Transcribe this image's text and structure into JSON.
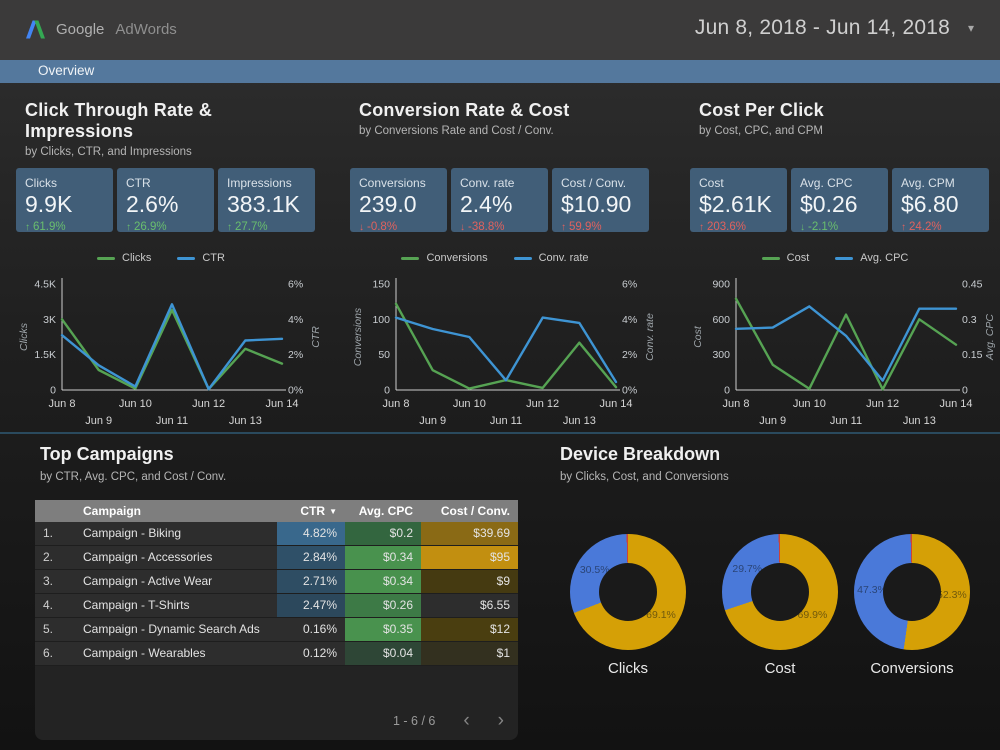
{
  "header": {
    "brand_google": "Google",
    "brand_product": "AdWords",
    "date_range": "Jun 8, 2018 - Jun 14, 2018",
    "date_caret": "▾"
  },
  "nav": {
    "overview_tab": "Overview"
  },
  "colors": {
    "accent_green": "#56A353",
    "accent_blue": "#3E94D3",
    "delta_good": "#69BE6E",
    "delta_bad": "#E0625E",
    "donut_gold": "#D5A006",
    "donut_blue": "#4A79D9",
    "donut_red": "#CC4437",
    "card_bg": "#415E78",
    "overview_bar": "#54789D"
  },
  "sections": [
    {
      "title": "Click Through Rate & Impressions",
      "subtitle": "by Clicks, CTR, and Impressions",
      "scorecards": [
        {
          "label": "Clicks",
          "value": "9.9K",
          "arrow": "↑",
          "delta": "61.9%",
          "sentiment": "good"
        },
        {
          "label": "CTR",
          "value": "2.6%",
          "arrow": "↑",
          "delta": "26.9%",
          "sentiment": "good"
        },
        {
          "label": "Impressions",
          "value": "383.1K",
          "arrow": "↑",
          "delta": "27.7%",
          "sentiment": "good"
        }
      ]
    },
    {
      "title": "Conversion Rate & Cost",
      "subtitle": "by Conversions Rate and Cost / Conv.",
      "scorecards": [
        {
          "label": "Conversions",
          "value": "239.0",
          "arrow": "↓",
          "delta": "-0.8%",
          "sentiment": "bad"
        },
        {
          "label": "Conv. rate",
          "value": "2.4%",
          "arrow": "↓",
          "delta": "-38.8%",
          "sentiment": "bad"
        },
        {
          "label": "Cost / Conv.",
          "value": "$10.90",
          "arrow": "↑",
          "delta": "59.9%",
          "sentiment": "bad"
        }
      ]
    },
    {
      "title": "Cost Per Click",
      "subtitle": "by Cost, CPC, and CPM",
      "scorecards": [
        {
          "label": "Cost",
          "value": "$2.61K",
          "arrow": "↑",
          "delta": "203.6%",
          "sentiment": "bad"
        },
        {
          "label": "Avg. CPC",
          "value": "$0.26",
          "arrow": "↓",
          "delta": "-2.1%",
          "sentiment": "good"
        },
        {
          "label": "Avg. CPM",
          "value": "$6.80",
          "arrow": "↑",
          "delta": "24.2%",
          "sentiment": "bad"
        }
      ]
    }
  ],
  "chart_data": [
    {
      "type": "line",
      "title": "Clicks and CTR by day",
      "x": [
        "Jun 8",
        "Jun 9",
        "Jun 10",
        "Jun 11",
        "Jun 12",
        "Jun 13",
        "Jun 14"
      ],
      "left_axis": {
        "label": "Clicks",
        "ticks": [
          "0",
          "1.5K",
          "3K",
          "4.5K"
        ],
        "max": 4500
      },
      "right_axis": {
        "label": "CTR",
        "ticks": [
          "0%",
          "2%",
          "4%",
          "6%"
        ],
        "max": 6
      },
      "series": [
        {
          "name": "Clicks",
          "axis": "left",
          "color": "#56A353",
          "values": [
            3000,
            850,
            60,
            3400,
            40,
            1750,
            1120
          ]
        },
        {
          "name": "CTR",
          "axis": "right",
          "color": "#3E94D3",
          "values": [
            3.1,
            1.4,
            0.2,
            4.85,
            0.05,
            2.8,
            2.9
          ]
        }
      ]
    },
    {
      "type": "line",
      "title": "Conversions and Conv. rate by day",
      "x": [
        "Jun 8",
        "Jun 9",
        "Jun 10",
        "Jun 11",
        "Jun 12",
        "Jun 13",
        "Jun 14"
      ],
      "left_axis": {
        "label": "Conversions",
        "ticks": [
          "0",
          "50",
          "100",
          "150"
        ],
        "max": 150
      },
      "right_axis": {
        "label": "Conv. rate",
        "ticks": [
          "0%",
          "2%",
          "4%",
          "6%"
        ],
        "max": 6
      },
      "series": [
        {
          "name": "Conversions",
          "axis": "left",
          "color": "#56A353",
          "values": [
            122,
            28,
            2,
            14,
            3,
            67,
            4
          ]
        },
        {
          "name": "Conv. rate",
          "axis": "right",
          "color": "#3E94D3",
          "values": [
            4.1,
            3.45,
            3.0,
            0.55,
            4.1,
            3.8,
            0.45
          ]
        }
      ]
    },
    {
      "type": "line",
      "title": "Cost and Avg. CPC by day",
      "x": [
        "Jun 8",
        "Jun 9",
        "Jun 10",
        "Jun 11",
        "Jun 12",
        "Jun 13",
        "Jun 14"
      ],
      "left_axis": {
        "label": "Cost",
        "ticks": [
          "0",
          "300",
          "600",
          "900"
        ],
        "max": 900
      },
      "right_axis": {
        "label": "Avg. CPC",
        "ticks": [
          "0",
          "0.15",
          "0.3",
          "0.45"
        ],
        "max": 0.45
      },
      "series": [
        {
          "name": "Cost",
          "axis": "left",
          "color": "#56A353",
          "values": [
            775,
            215,
            10,
            640,
            5,
            600,
            385
          ]
        },
        {
          "name": "Avg. CPC",
          "axis": "right",
          "color": "#3E94D3",
          "values": [
            0.26,
            0.265,
            0.355,
            0.23,
            0.04,
            0.345,
            0.345
          ]
        }
      ]
    }
  ],
  "campaigns": {
    "title": "Top Campaigns",
    "subtitle": "by CTR, Avg. CPC, and Cost / Conv.",
    "columns": {
      "campaign": "Campaign",
      "ctr": "CTR",
      "sort_caret": "▼",
      "cpc": "Avg. CPC",
      "cost": "Cost / Conv."
    },
    "rows": [
      {
        "num": "1.",
        "name": "Campaign - Biking",
        "ctr": "4.82%",
        "cpc": "$0.2",
        "cost": "$39.69",
        "ctr_bg": "#39688C",
        "cpc_bg": "#33663F",
        "cost_bg": "#8A6A15"
      },
      {
        "num": "2.",
        "name": "Campaign - Accessories",
        "ctr": "2.84%",
        "cpc": "$0.34",
        "cost": "$95",
        "ctr_bg": "#2F5068",
        "cpc_bg": "#49924E",
        "cost_bg": "#C28F10"
      },
      {
        "num": "3.",
        "name": "Campaign - Active Wear",
        "ctr": "2.71%",
        "cpc": "$0.34",
        "cost": "$9",
        "ctr_bg": "#2E4D63",
        "cpc_bg": "#48914D",
        "cost_bg": "#453A11"
      },
      {
        "num": "4.",
        "name": "Campaign - T-Shirts",
        "ctr": "2.47%",
        "cpc": "$0.26",
        "cost": "$6.55",
        "ctr_bg": "#2C485C",
        "cpc_bg": "#3D7A46",
        "cost_bg": ""
      },
      {
        "num": "5.",
        "name": "Campaign - Dynamic Search Ads",
        "ctr": "0.16%",
        "cpc": "$0.35",
        "cost": "$12",
        "ctr_bg": "",
        "cpc_bg": "#49924E",
        "cost_bg": "#4A3E10"
      },
      {
        "num": "6.",
        "name": "Campaign - Wearables",
        "ctr": "0.12%",
        "cpc": "$0.04",
        "cost": "$1",
        "ctr_bg": "",
        "cpc_bg": "#2E4636",
        "cost_bg": "#33301F"
      }
    ],
    "pagination": {
      "range": "1 - 6 / 6",
      "prev": "‹",
      "next": "›"
    }
  },
  "devices": {
    "title": "Device Breakdown",
    "subtitle": "by Clicks, Cost, and Conversions",
    "donuts": [
      {
        "label": "Clicks",
        "slices": [
          {
            "pct": 69.1,
            "color": "#D5A006",
            "label": "69.1%"
          },
          {
            "pct": 30.5,
            "color": "#4A79D9",
            "label": "30.5%"
          },
          {
            "pct": 0.4,
            "color": "#CC4437",
            "label": ""
          }
        ]
      },
      {
        "label": "Cost",
        "slices": [
          {
            "pct": 69.9,
            "color": "#D5A006",
            "label": "69.9%"
          },
          {
            "pct": 29.7,
            "color": "#4A79D9",
            "label": "29.7%"
          },
          {
            "pct": 0.4,
            "color": "#CC4437",
            "label": ""
          }
        ]
      },
      {
        "label": "Conversions",
        "slices": [
          {
            "pct": 52.3,
            "color": "#D5A006",
            "label": "52.3%"
          },
          {
            "pct": 47.3,
            "color": "#4A79D9",
            "label": "47.3%"
          },
          {
            "pct": 0.4,
            "color": "#CC4437",
            "label": ""
          }
        ]
      }
    ]
  }
}
